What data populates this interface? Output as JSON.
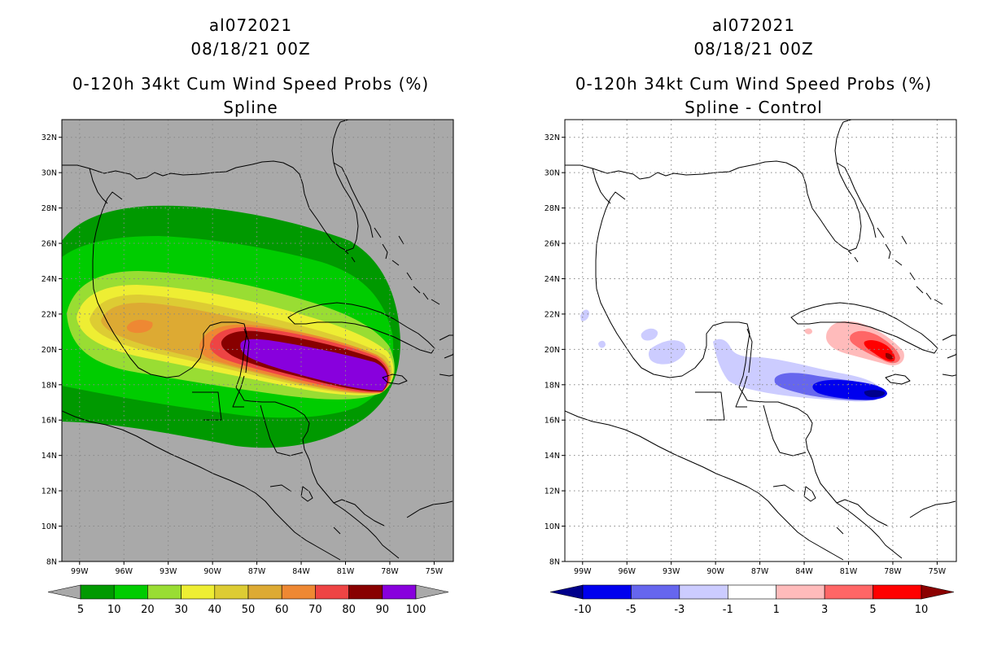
{
  "panels": [
    {
      "storm_id": "al072021",
      "datetime": "08/18/21 00Z",
      "product": "0-120h 34kt Cum Wind Speed Probs (%)",
      "subtitle": "Spline",
      "background": "#a9a9a9",
      "colorbar": {
        "labels": [
          "5",
          "10",
          "20",
          "30",
          "40",
          "50",
          "60",
          "70",
          "80",
          "90",
          "100"
        ],
        "colors": [
          "#009900",
          "#00cc00",
          "#99dd33",
          "#eeee33",
          "#ddcc33",
          "#ddaa33",
          "#ee8833",
          "#ee4444",
          "#880000",
          "#8800dd"
        ],
        "under_color": "#a9a9a9",
        "over_color": "#a9a9a9"
      }
    },
    {
      "storm_id": "al072021",
      "datetime": "08/18/21 00Z",
      "product": "0-120h 34kt Cum Wind Speed Probs (%)",
      "subtitle": "Spline - Control",
      "background": "#ffffff",
      "colorbar": {
        "labels": [
          "-10",
          "-5",
          "-3",
          "-1",
          "1",
          "3",
          "5",
          "10"
        ],
        "colors": [
          "#0000ee",
          "#6666ee",
          "#ccccff",
          "#ffffff",
          "#ffbbbb",
          "#ff6666",
          "#ff0000"
        ],
        "under_color": "#00008b",
        "over_color": "#8b0000"
      }
    }
  ],
  "map": {
    "lon_labels": [
      "99W",
      "96W",
      "93W",
      "90W",
      "87W",
      "84W",
      "81W",
      "78W",
      "75W"
    ],
    "lat_labels": [
      "8N",
      "10N",
      "12N",
      "14N",
      "16N",
      "18N",
      "20N",
      "22N",
      "24N",
      "26N",
      "28N",
      "30N",
      "32N"
    ],
    "lon_range": [
      -100.2,
      -73.7
    ],
    "lat_range": [
      8,
      33
    ]
  }
}
